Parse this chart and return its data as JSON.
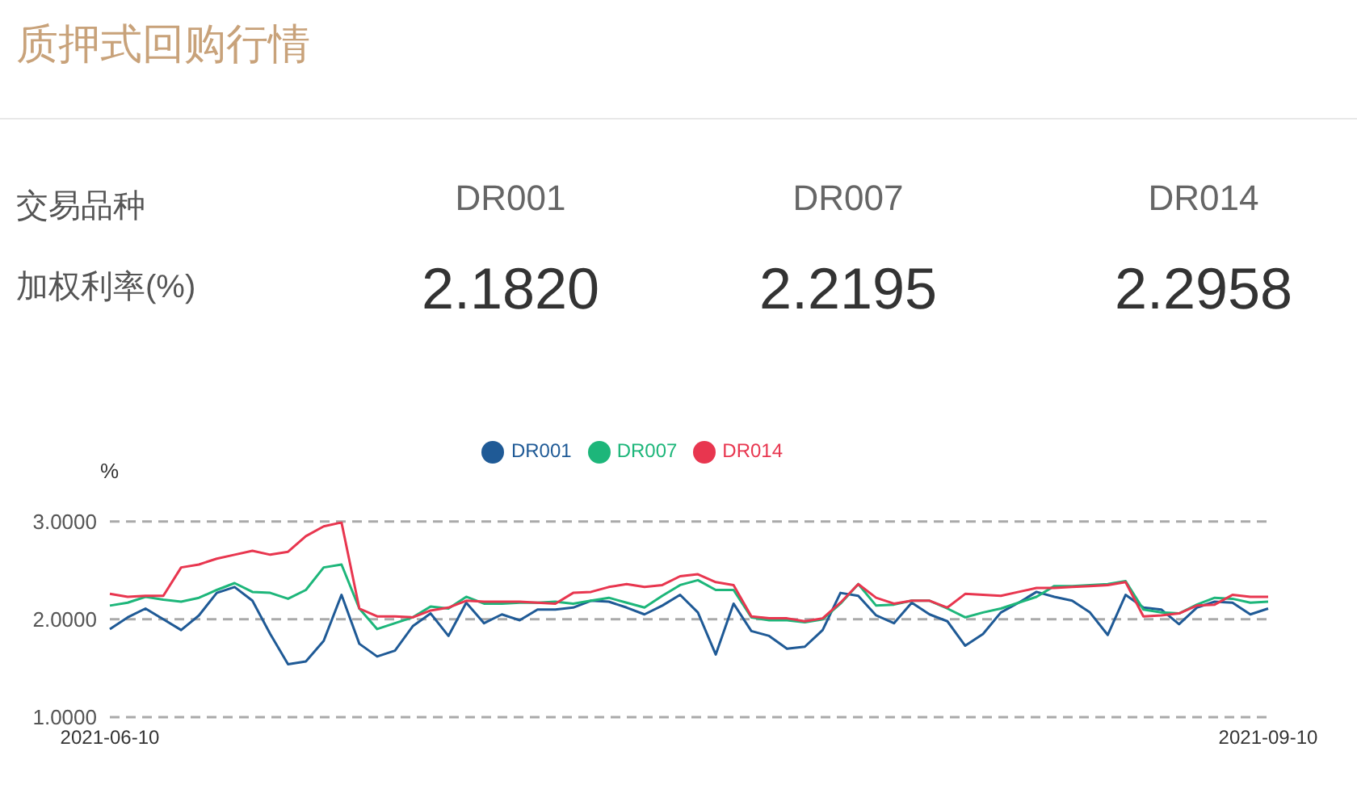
{
  "chart_data": [
    {
      "type": "other",
      "title": "质押式回购行情",
      "annotations": [
        "交易品种",
        "DR001",
        "DR007",
        "DR014",
        "加权利率(%)",
        "2.1820",
        "2.2195",
        "2.2958"
      ]
    },
    {
      "type": "line",
      "ylabel": "%",
      "legend": "top",
      "grid": "y",
      "marker": "none",
      "line_style": "solid",
      "ylim": [
        1,
        3
      ],
      "yticks": [
        {
          "value": 1,
          "label": "1.0000"
        },
        {
          "value": 2,
          "label": "2.0000"
        },
        {
          "value": 3,
          "label": "3.0000"
        }
      ],
      "categories": [
        "2021-06-10",
        null,
        null,
        null,
        null,
        null,
        null,
        null,
        null,
        null,
        null,
        null,
        null,
        null,
        null,
        null,
        null,
        null,
        null,
        null,
        null,
        null,
        null,
        null,
        null,
        null,
        null,
        null,
        null,
        null,
        null,
        null,
        null,
        null,
        null,
        null,
        null,
        null,
        null,
        null,
        null,
        null,
        null,
        null,
        null,
        null,
        null,
        null,
        null,
        null,
        null,
        null,
        null,
        null,
        null,
        null,
        null,
        null,
        null,
        null,
        null,
        null,
        null,
        null,
        null,
        "2021-09-10"
      ],
      "series": [
        {
          "name": "DR001",
          "color": "#1f5a96",
          "values": [
            1.9,
            2.02,
            2.11,
            2.0,
            1.89,
            2.04,
            2.27,
            2.33,
            2.19,
            1.85,
            1.54,
            1.57,
            1.78,
            2.25,
            1.75,
            1.62,
            1.68,
            1.93,
            2.06,
            1.83,
            2.17,
            1.96,
            2.05,
            1.99,
            2.1,
            2.1,
            2.12,
            2.19,
            2.18,
            2.12,
            2.05,
            2.14,
            2.25,
            2.07,
            1.64,
            2.16,
            1.88,
            1.83,
            1.7,
            1.72,
            1.89,
            2.27,
            2.24,
            2.04,
            1.96,
            2.17,
            2.05,
            1.98,
            1.73,
            1.85,
            2.07,
            2.17,
            2.28,
            2.23,
            2.19,
            2.07,
            1.84,
            2.25,
            2.12,
            2.1,
            1.95,
            2.12,
            2.18,
            2.17,
            2.05,
            2.11
          ]
        },
        {
          "name": "DR007",
          "color": "#1db67a",
          "values": [
            2.14,
            2.17,
            2.23,
            2.2,
            2.18,
            2.22,
            2.3,
            2.37,
            2.28,
            2.27,
            2.21,
            2.3,
            2.53,
            2.56,
            2.11,
            1.9,
            1.96,
            2.02,
            2.13,
            2.11,
            2.23,
            2.16,
            2.16,
            2.17,
            2.17,
            2.18,
            2.16,
            2.19,
            2.22,
            2.17,
            2.12,
            2.24,
            2.35,
            2.4,
            2.3,
            2.3,
            2.02,
            1.99,
            1.99,
            1.97,
            2.0,
            2.16,
            2.36,
            2.14,
            2.15,
            2.19,
            2.19,
            2.11,
            2.02,
            2.07,
            2.11,
            2.17,
            2.23,
            2.34,
            2.34,
            2.35,
            2.36,
            2.39,
            2.1,
            2.07,
            2.06,
            2.15,
            2.22,
            2.21,
            2.17,
            2.18
          ]
        },
        {
          "name": "DR014",
          "color": "#e8364f",
          "values": [
            2.26,
            2.23,
            2.24,
            2.24,
            2.53,
            2.56,
            2.62,
            2.66,
            2.7,
            2.66,
            2.69,
            2.85,
            2.95,
            2.99,
            2.11,
            2.03,
            2.03,
            2.02,
            2.09,
            2.12,
            2.19,
            2.18,
            2.18,
            2.18,
            2.17,
            2.16,
            2.27,
            2.28,
            2.33,
            2.36,
            2.33,
            2.35,
            2.44,
            2.46,
            2.38,
            2.35,
            2.03,
            2.01,
            2.01,
            1.98,
            2.01,
            2.17,
            2.36,
            2.22,
            2.16,
            2.19,
            2.19,
            2.12,
            2.26,
            2.25,
            2.24,
            2.28,
            2.32,
            2.32,
            2.33,
            2.34,
            2.35,
            2.38,
            2.03,
            2.04,
            2.06,
            2.14,
            2.15,
            2.25,
            2.23,
            2.23
          ]
        }
      ]
    }
  ]
}
